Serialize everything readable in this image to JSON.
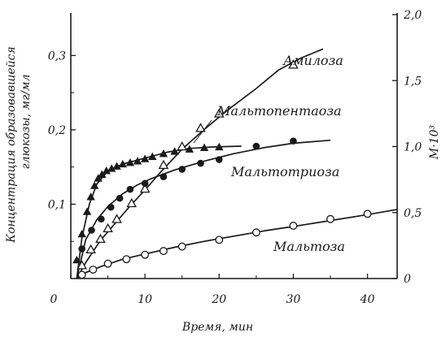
{
  "chart_data": {
    "type": "scatter",
    "xlabel": "Время, мин",
    "ylabel_left": [
      "Концентрация образовавшейся",
      "глюкозы, мг/мл"
    ],
    "ylabel_right": "M·10³",
    "xlim": [
      0,
      44
    ],
    "ylim_left": [
      0,
      0.355
    ],
    "ylim_right": [
      0,
      2.0
    ],
    "x_ticks": [
      0,
      10,
      20,
      30,
      40
    ],
    "x_tick_labels": [
      "0",
      "10",
      "20",
      "30",
      "40"
    ],
    "y_left_ticks": [
      0.1,
      0.2,
      0.3
    ],
    "y_left_tick_labels": [
      "0,1",
      "0,2",
      "0,3"
    ],
    "y_right_ticks": [
      0,
      0.5,
      1.0,
      1.5,
      2.0
    ],
    "y_right_tick_labels": [
      "0",
      "0,5",
      "1,0",
      "1,5",
      "2,0"
    ],
    "grid": false,
    "series": [
      {
        "name": "Амилоза",
        "marker": "triangle-open",
        "axis": "right",
        "x": [
          1.5,
          2.7,
          4,
          5,
          6.2,
          8.2,
          10,
          12.5,
          15,
          17.5,
          20,
          30
        ],
        "y": [
          0.1,
          0.22,
          0.3,
          0.38,
          0.45,
          0.57,
          0.68,
          0.86,
          1.0,
          1.14,
          1.25,
          1.62
        ],
        "curve_x": [
          0.8,
          2,
          4,
          6,
          8,
          10,
          12,
          15,
          18,
          21,
          25,
          28,
          31,
          34
        ],
        "curve_y": [
          0,
          0.12,
          0.29,
          0.42,
          0.55,
          0.67,
          0.8,
          0.98,
          1.13,
          1.27,
          1.44,
          1.58,
          1.67,
          1.74
        ]
      },
      {
        "name": "Мальтопентаоза",
        "marker": "triangle-filled",
        "axis": "left",
        "x": [
          0.8,
          1.5,
          2.2,
          2.7,
          3.2,
          3.7,
          4.2,
          4.8,
          5.5,
          6.2,
          7,
          8,
          9,
          10,
          11,
          12.5,
          14,
          16,
          18,
          20
        ],
        "y": [
          0.025,
          0.06,
          0.09,
          0.11,
          0.125,
          0.135,
          0.14,
          0.145,
          0.148,
          0.151,
          0.154,
          0.156,
          0.158,
          0.161,
          0.164,
          0.168,
          0.171,
          0.174,
          0.176,
          0.177
        ],
        "curve_x": [
          0.8,
          1.5,
          2.5,
          3.5,
          5,
          7,
          10,
          13,
          16,
          19,
          23
        ],
        "curve_y": [
          0,
          0.055,
          0.1,
          0.127,
          0.145,
          0.154,
          0.162,
          0.17,
          0.175,
          0.177,
          0.178
        ]
      },
      {
        "name": "Мальтотриоза",
        "marker": "circle-filled",
        "axis": "left",
        "x": [
          1.5,
          2.8,
          4.1,
          5.4,
          6.6,
          8,
          10,
          12.5,
          15,
          17.5,
          20,
          25,
          30
        ],
        "y": [
          0.04,
          0.065,
          0.08,
          0.096,
          0.108,
          0.12,
          0.128,
          0.137,
          0.147,
          0.155,
          0.16,
          0.178,
          0.185
        ],
        "curve_x": [
          0.8,
          2,
          3.5,
          5,
          7,
          9,
          11,
          14,
          18,
          22,
          26,
          30,
          35
        ],
        "curve_y": [
          0,
          0.052,
          0.079,
          0.097,
          0.114,
          0.126,
          0.135,
          0.146,
          0.158,
          0.168,
          0.176,
          0.182,
          0.186
        ]
      },
      {
        "name": "Мальтоза",
        "marker": "circle-open",
        "axis": "left",
        "x": [
          1.5,
          3,
          5,
          7.5,
          10,
          12.5,
          15,
          20,
          25,
          30,
          35,
          40
        ],
        "y": [
          0.005,
          0.012,
          0.02,
          0.026,
          0.032,
          0.037,
          0.043,
          0.052,
          0.062,
          0.071,
          0.08,
          0.087
        ],
        "curve_x": [
          0.8,
          2,
          4,
          7,
          10,
          14,
          18,
          22,
          26,
          30,
          35,
          40,
          44
        ],
        "curve_y": [
          0,
          0.008,
          0.016,
          0.026,
          0.033,
          0.042,
          0.05,
          0.057,
          0.064,
          0.07,
          0.078,
          0.086,
          0.093
        ]
      }
    ]
  }
}
